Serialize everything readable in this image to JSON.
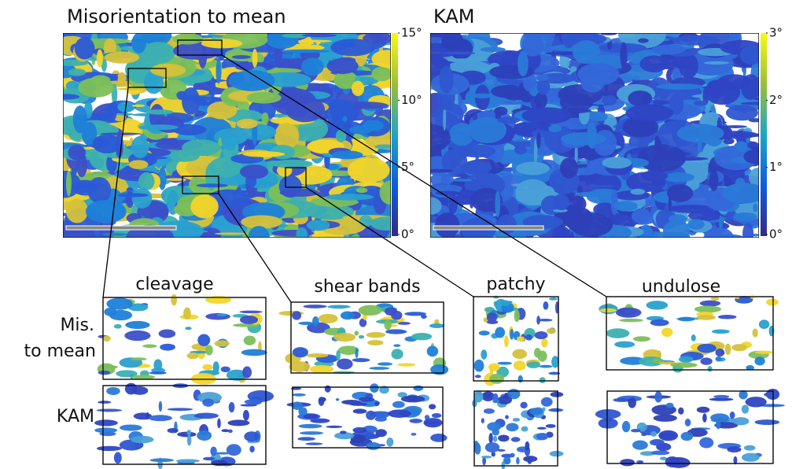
{
  "panels": [
    {
      "title": "Misorientation to mean",
      "colorbar": {
        "range": [
          0,
          15
        ],
        "ticks": [
          {
            "value": 15,
            "label": "15°"
          },
          {
            "value": 10,
            "label": "10°"
          },
          {
            "value": 5,
            "label": "5°"
          },
          {
            "value": 0,
            "label": "0°"
          }
        ]
      }
    },
    {
      "title": "KAM",
      "colorbar": {
        "range": [
          0,
          3
        ],
        "ticks": [
          {
            "value": 3,
            "label": "3°"
          },
          {
            "value": 2,
            "label": "2°"
          },
          {
            "value": 1,
            "label": "1°"
          },
          {
            "value": 0,
            "label": "0°"
          }
        ]
      }
    }
  ],
  "insets": {
    "columns": [
      "cleavage",
      "shear bands",
      "patchy",
      "undulose"
    ],
    "rows": [
      [
        "Mis.",
        "to mean"
      ],
      [
        "KAM"
      ]
    ]
  }
}
